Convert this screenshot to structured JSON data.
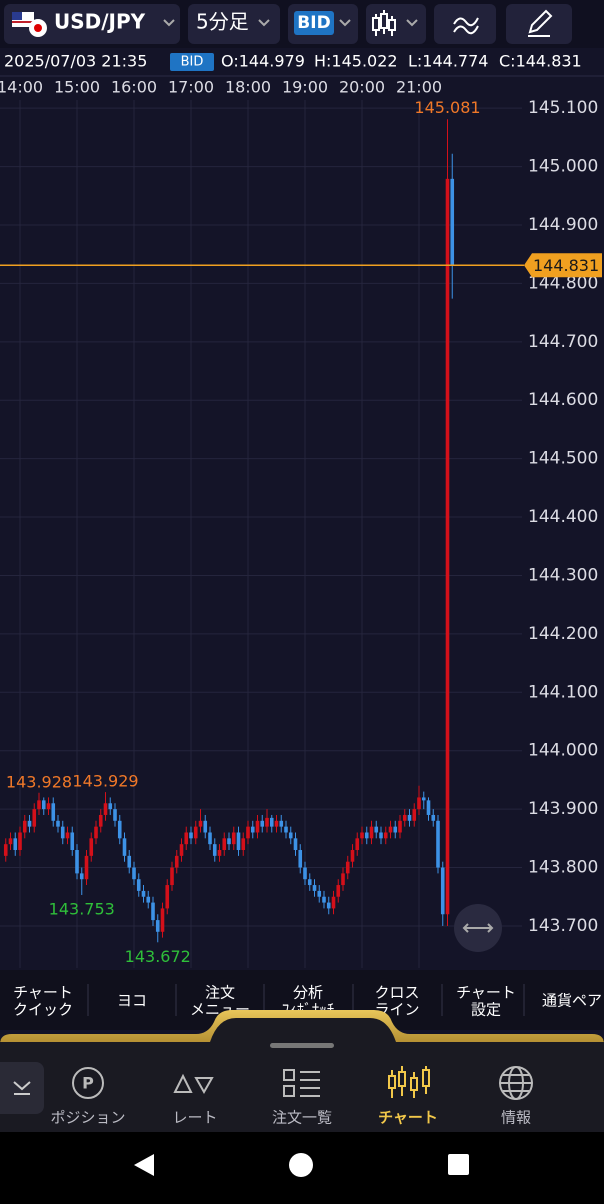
{
  "header": {
    "pair": "USD/JPY",
    "timeframe": "5分足",
    "price_type": "BID"
  },
  "info": {
    "datetime": "2025/07/03 21:35",
    "price_type": "BID",
    "open": "O:144.979",
    "high": "H:145.022",
    "low": "L:144.774",
    "close": "C:144.831"
  },
  "chart_data": {
    "type": "candlestick",
    "up_color": "#d4101a",
    "down_color": "#3d92e6",
    "grid": true,
    "price_line_color": "#f0a020",
    "ylim": [
      143.628,
      145.114
    ],
    "yticks": [
      {
        "value": 145.1,
        "label": "145.100"
      },
      {
        "value": 145.0,
        "label": "145.000"
      },
      {
        "value": 144.9,
        "label": "144.900"
      },
      {
        "value": 144.8,
        "label": "144.800"
      },
      {
        "value": 144.7,
        "label": "144.700"
      },
      {
        "value": 144.6,
        "label": "144.600"
      },
      {
        "value": 144.5,
        "label": "144.500"
      },
      {
        "value": 144.4,
        "label": "144.400"
      },
      {
        "value": 144.3,
        "label": "144.300"
      },
      {
        "value": 144.2,
        "label": "144.200"
      },
      {
        "value": 144.1,
        "label": "144.100"
      },
      {
        "value": 144.0,
        "label": "144.000"
      },
      {
        "value": 143.9,
        "label": "143.900"
      },
      {
        "value": 143.8,
        "label": "143.800"
      },
      {
        "value": 143.7,
        "label": "143.700"
      }
    ],
    "xticks": [
      {
        "value": 3,
        "label": "14:00"
      },
      {
        "value": 15,
        "label": "15:00"
      },
      {
        "value": 27,
        "label": "16:00"
      },
      {
        "value": 39,
        "label": "17:00"
      },
      {
        "value": 51,
        "label": "18:00"
      },
      {
        "value": 63,
        "label": "19:00"
      },
      {
        "value": 75,
        "label": "20:00"
      },
      {
        "value": 87,
        "label": "21:00"
      }
    ],
    "candles": [
      [
        143.82,
        143.85,
        143.81,
        143.84
      ],
      [
        143.84,
        143.86,
        143.83,
        143.85
      ],
      [
        143.85,
        143.86,
        143.82,
        143.83
      ],
      [
        143.83,
        143.87,
        143.82,
        143.86
      ],
      [
        143.86,
        143.89,
        143.85,
        143.88
      ],
      [
        143.88,
        143.89,
        143.86,
        143.87
      ],
      [
        143.87,
        143.91,
        143.86,
        143.9
      ],
      [
        143.9,
        143.928,
        143.89,
        143.915
      ],
      [
        143.915,
        143.92,
        143.89,
        143.9
      ],
      [
        143.9,
        143.92,
        143.89,
        143.91
      ],
      [
        143.91,
        143.92,
        143.87,
        143.88
      ],
      [
        143.88,
        143.89,
        143.86,
        143.87
      ],
      [
        143.87,
        143.88,
        143.84,
        143.85
      ],
      [
        143.85,
        143.87,
        143.84,
        143.86
      ],
      [
        143.86,
        143.87,
        143.82,
        143.83
      ],
      [
        143.83,
        143.84,
        143.78,
        143.79
      ],
      [
        143.79,
        143.8,
        143.753,
        143.78
      ],
      [
        143.78,
        143.83,
        143.77,
        143.82
      ],
      [
        143.82,
        143.86,
        143.81,
        143.85
      ],
      [
        143.85,
        143.88,
        143.84,
        143.87
      ],
      [
        143.87,
        143.9,
        143.86,
        143.89
      ],
      [
        143.89,
        143.929,
        143.88,
        143.91
      ],
      [
        143.91,
        143.92,
        143.89,
        143.9
      ],
      [
        143.9,
        143.91,
        143.87,
        143.88
      ],
      [
        143.88,
        143.89,
        143.84,
        143.85
      ],
      [
        143.85,
        143.86,
        143.81,
        143.82
      ],
      [
        143.82,
        143.83,
        143.79,
        143.8
      ],
      [
        143.8,
        143.81,
        143.77,
        143.78
      ],
      [
        143.78,
        143.79,
        143.75,
        143.76
      ],
      [
        143.76,
        143.77,
        143.74,
        143.75
      ],
      [
        143.75,
        143.76,
        143.73,
        143.74
      ],
      [
        143.74,
        143.75,
        143.7,
        143.71
      ],
      [
        143.71,
        143.72,
        143.672,
        143.69
      ],
      [
        143.69,
        143.74,
        143.68,
        143.73
      ],
      [
        143.73,
        143.78,
        143.72,
        143.77
      ],
      [
        143.77,
        143.81,
        143.76,
        143.8
      ],
      [
        143.8,
        143.83,
        143.79,
        143.82
      ],
      [
        143.82,
        143.85,
        143.81,
        143.84
      ],
      [
        143.84,
        143.87,
        143.83,
        143.86
      ],
      [
        143.86,
        143.87,
        143.84,
        143.85
      ],
      [
        143.85,
        143.88,
        143.84,
        143.87
      ],
      [
        143.87,
        143.9,
        143.86,
        143.88
      ],
      [
        143.88,
        143.89,
        143.85,
        143.86
      ],
      [
        143.86,
        143.87,
        143.83,
        143.84
      ],
      [
        143.84,
        143.85,
        143.81,
        143.82
      ],
      [
        143.82,
        143.84,
        143.81,
        143.83
      ],
      [
        143.83,
        143.86,
        143.82,
        143.85
      ],
      [
        143.85,
        143.86,
        143.83,
        143.84
      ],
      [
        143.84,
        143.87,
        143.83,
        143.86
      ],
      [
        143.86,
        143.87,
        143.82,
        143.83
      ],
      [
        143.83,
        143.86,
        143.82,
        143.85
      ],
      [
        143.85,
        143.88,
        143.84,
        143.87
      ],
      [
        143.87,
        143.88,
        143.85,
        143.86
      ],
      [
        143.86,
        143.89,
        143.85,
        143.88
      ],
      [
        143.88,
        143.89,
        143.86,
        143.87
      ],
      [
        143.87,
        143.9,
        143.86,
        143.885
      ],
      [
        143.885,
        143.89,
        143.86,
        143.87
      ],
      [
        143.87,
        143.89,
        143.86,
        143.88
      ],
      [
        143.88,
        143.89,
        143.86,
        143.87
      ],
      [
        143.87,
        143.88,
        143.85,
        143.86
      ],
      [
        143.86,
        143.87,
        143.84,
        143.85
      ],
      [
        143.85,
        143.86,
        143.82,
        143.83
      ],
      [
        143.83,
        143.84,
        143.79,
        143.8
      ],
      [
        143.8,
        143.81,
        143.77,
        143.78
      ],
      [
        143.78,
        143.79,
        143.76,
        143.77
      ],
      [
        143.77,
        143.78,
        143.75,
        143.76
      ],
      [
        143.76,
        143.77,
        143.74,
        143.75
      ],
      [
        143.75,
        143.76,
        143.73,
        143.74
      ],
      [
        143.74,
        143.75,
        143.72,
        143.73
      ],
      [
        143.73,
        143.76,
        143.72,
        143.75
      ],
      [
        143.75,
        143.78,
        143.74,
        143.77
      ],
      [
        143.77,
        143.8,
        143.76,
        143.79
      ],
      [
        143.79,
        143.82,
        143.78,
        143.81
      ],
      [
        143.81,
        143.84,
        143.8,
        143.83
      ],
      [
        143.83,
        143.86,
        143.82,
        143.85
      ],
      [
        143.85,
        143.87,
        143.84,
        143.86
      ],
      [
        143.86,
        143.87,
        143.84,
        143.85
      ],
      [
        143.85,
        143.88,
        143.84,
        143.87
      ],
      [
        143.87,
        143.88,
        143.85,
        143.86
      ],
      [
        143.86,
        143.87,
        143.84,
        143.85
      ],
      [
        143.85,
        143.87,
        143.84,
        143.86
      ],
      [
        143.86,
        143.88,
        143.85,
        143.87
      ],
      [
        143.87,
        143.88,
        143.85,
        143.86
      ],
      [
        143.86,
        143.89,
        143.85,
        143.88
      ],
      [
        143.88,
        143.9,
        143.87,
        143.89
      ],
      [
        143.89,
        143.9,
        143.87,
        143.88
      ],
      [
        143.88,
        143.91,
        143.87,
        143.9
      ],
      [
        143.9,
        143.94,
        143.89,
        143.92
      ],
      [
        143.92,
        143.93,
        143.9,
        143.915
      ],
      [
        143.915,
        143.92,
        143.88,
        143.89
      ],
      [
        143.89,
        143.9,
        143.87,
        143.88
      ],
      [
        143.88,
        143.89,
        143.79,
        143.8
      ],
      [
        143.8,
        143.81,
        143.7,
        143.72
      ],
      [
        143.72,
        145.081,
        143.7,
        144.979
      ],
      [
        144.979,
        145.022,
        144.774,
        144.831
      ]
    ]
  },
  "toolbar": [
    [
      "チャート",
      "クイック"
    ],
    [
      "ヨコ"
    ],
    [
      "注文",
      "メニュー"
    ],
    [
      "分析",
      "ﾌｨﾎﾞﾅｯﾁ"
    ],
    [
      "クロス",
      "ライン"
    ],
    [
      "チャート",
      "設定"
    ],
    [
      "通貨ペア"
    ]
  ],
  "nav": [
    "ポジション",
    "レート",
    "注文一覧",
    "チャート",
    "情報"
  ]
}
